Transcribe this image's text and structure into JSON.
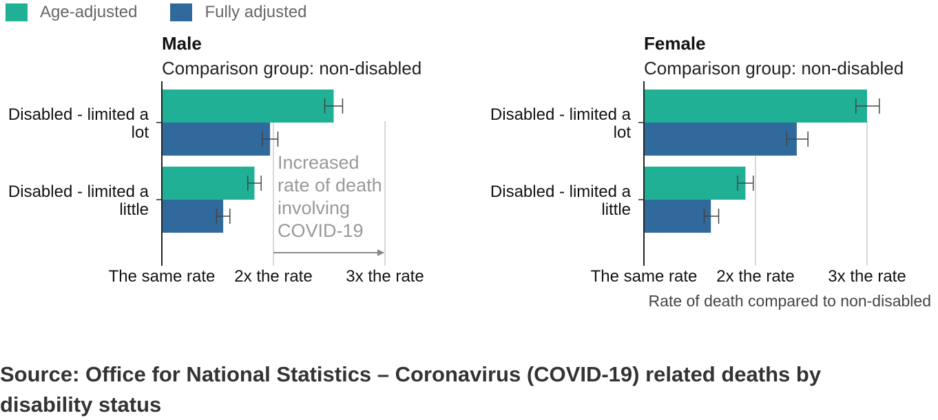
{
  "legend": {
    "items": [
      {
        "label": "Age-adjusted",
        "color": "#20b096"
      },
      {
        "label": "Fully adjusted",
        "color": "#306a9c"
      }
    ]
  },
  "chart_data": [
    {
      "type": "bar",
      "orientation": "horizontal",
      "title": "Male",
      "subtitle": "Comparison group: non-disabled",
      "categories": [
        "Disabled - limited a lot",
        "Disabled - limited a little"
      ],
      "series": [
        {
          "name": "Age-adjusted",
          "color": "#20b096",
          "values": [
            2.54,
            1.83
          ],
          "ci_low": [
            2.46,
            1.77
          ],
          "ci_high": [
            2.62,
            1.89
          ]
        },
        {
          "name": "Fully adjusted",
          "color": "#306a9c",
          "values": [
            1.97,
            1.55
          ],
          "ci_low": [
            1.9,
            1.49
          ],
          "ci_high": [
            2.04,
            1.61
          ]
        }
      ],
      "xlim": [
        1,
        3
      ],
      "xticks": [
        {
          "value": 1,
          "label": "The same rate"
        },
        {
          "value": 2,
          "label": "2x the rate"
        },
        {
          "value": 3,
          "label": "3x the rate"
        }
      ],
      "xlabel": "",
      "grid": true,
      "annotation": {
        "lines": [
          "Increased",
          "rate of death",
          "involving",
          "COVID-19"
        ],
        "arrow_from": 2.0,
        "arrow_to": 3.0
      }
    },
    {
      "type": "bar",
      "orientation": "horizontal",
      "title": "Female",
      "subtitle": "Comparison group: non-disabled",
      "categories": [
        "Disabled - limited a lot",
        "Disabled - limited a little"
      ],
      "series": [
        {
          "name": "Age-adjusted",
          "color": "#20b096",
          "values": [
            3.0,
            1.91
          ],
          "ci_low": [
            2.9,
            1.84
          ],
          "ci_high": [
            3.11,
            1.98
          ]
        },
        {
          "name": "Fully adjusted",
          "color": "#306a9c",
          "values": [
            2.37,
            1.6
          ],
          "ci_low": [
            2.28,
            1.54
          ],
          "ci_high": [
            2.47,
            1.67
          ]
        }
      ],
      "xlim": [
        1,
        3
      ],
      "xticks": [
        {
          "value": 1,
          "label": "The same rate"
        },
        {
          "value": 2,
          "label": "2x the rate"
        },
        {
          "value": 3,
          "label": "3x the rate"
        }
      ],
      "xlabel": "Rate of death compared to non-disabled",
      "grid": true
    }
  ],
  "category_lines": [
    [
      "Disabled - limited a",
      "lot"
    ],
    [
      "Disabled - limited a",
      "little"
    ]
  ],
  "source": "Source: Office for National Statistics – Coronavirus (COVID-19) related deaths by disability status"
}
